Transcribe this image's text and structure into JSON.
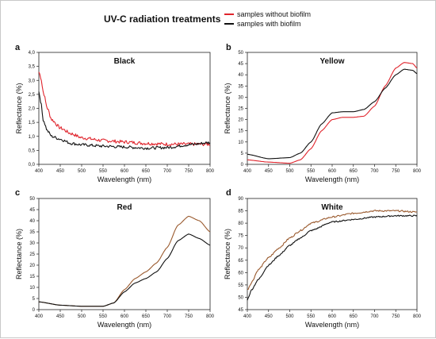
{
  "figure": {
    "title": "UV-C radiation treatments",
    "legend": [
      {
        "label": "samples without biofilm",
        "color": "#e0242c"
      },
      {
        "label": "samples with biofilm",
        "color": "#111111"
      }
    ]
  },
  "chart_data": [
    {
      "panel": "a",
      "type": "line",
      "title": "Black",
      "xlabel": "Wavelength (nm)",
      "ylabel": "Reflectance (%)",
      "xlim": [
        400,
        800
      ],
      "ylim": [
        0,
        4.0
      ],
      "xticks": [
        "400",
        "450",
        "500",
        "550",
        "600",
        "650",
        "700",
        "750",
        "800"
      ],
      "yticks": [
        "0,0",
        "0,5",
        "1,0",
        "1,5",
        "2,0",
        "2,5",
        "3,0",
        "3,5",
        "4,0"
      ],
      "ytick_values": [
        0,
        0.5,
        1,
        1.5,
        2,
        2.5,
        3,
        3.5,
        4
      ],
      "series": [
        {
          "name": "samples without biofilm",
          "color": "#e0242c",
          "noise": 0.06,
          "x": [
            400,
            405,
            410,
            420,
            430,
            450,
            475,
            500,
            550,
            600,
            650,
            700,
            750,
            800
          ],
          "y": [
            3.3,
            3.1,
            2.6,
            2.0,
            1.6,
            1.3,
            1.1,
            0.95,
            0.85,
            0.8,
            0.75,
            0.72,
            0.72,
            0.72
          ]
        },
        {
          "name": "samples with biofilm",
          "color": "#111111",
          "noise": 0.05,
          "x": [
            400,
            405,
            410,
            420,
            430,
            450,
            475,
            500,
            550,
            600,
            650,
            700,
            750,
            800
          ],
          "y": [
            2.6,
            2.2,
            1.6,
            1.2,
            1.0,
            0.9,
            0.75,
            0.7,
            0.65,
            0.62,
            0.58,
            0.6,
            0.7,
            0.78
          ]
        }
      ]
    },
    {
      "panel": "b",
      "type": "line",
      "title": "Yellow",
      "xlabel": "Wavelength (nm)",
      "ylabel": "Reflectance (%)",
      "xlim": [
        400,
        800
      ],
      "ylim": [
        0,
        50
      ],
      "xticks": [
        "400",
        "450",
        "500",
        "550",
        "600",
        "650",
        "700",
        "750",
        "800"
      ],
      "yticks": [
        "0",
        "5",
        "10",
        "15",
        "20",
        "25",
        "30",
        "35",
        "40",
        "45",
        "50"
      ],
      "ytick_values": [
        0,
        5,
        10,
        15,
        20,
        25,
        30,
        35,
        40,
        45,
        50
      ],
      "series": [
        {
          "name": "samples without biofilm",
          "color": "#e0242c",
          "noise": 0,
          "x": [
            400,
            450,
            500,
            525,
            550,
            575,
            600,
            625,
            650,
            675,
            700,
            725,
            750,
            770,
            790,
            800
          ],
          "y": [
            2,
            1,
            0.5,
            2,
            7,
            15,
            20,
            21,
            21,
            21.5,
            26,
            35,
            43,
            45.5,
            45,
            43
          ]
        },
        {
          "name": "samples with biofilm",
          "color": "#111111",
          "noise": 0,
          "x": [
            400,
            450,
            500,
            525,
            550,
            575,
            600,
            625,
            650,
            675,
            700,
            725,
            750,
            770,
            790,
            800
          ],
          "y": [
            4.5,
            2.5,
            3,
            5,
            10,
            18,
            23,
            23.5,
            23.5,
            24.5,
            28,
            34,
            40,
            42.5,
            42,
            40.5
          ]
        }
      ]
    },
    {
      "panel": "c",
      "type": "line",
      "title": "Red",
      "xlabel": "Wavelength (nm)",
      "ylabel": "Reflectance (%)",
      "xlim": [
        400,
        800
      ],
      "ylim": [
        0,
        50
      ],
      "xticks": [
        "400",
        "450",
        "500",
        "550",
        "600",
        "650",
        "700",
        "750",
        "800"
      ],
      "yticks": [
        "0",
        "5",
        "10",
        "15",
        "20",
        "25",
        "30",
        "35",
        "40",
        "45",
        "50"
      ],
      "ytick_values": [
        0,
        5,
        10,
        15,
        20,
        25,
        30,
        35,
        40,
        45,
        50
      ],
      "series": [
        {
          "name": "samples without biofilm",
          "color": "#9a5a2e",
          "noise": 0,
          "x": [
            400,
            450,
            500,
            550,
            575,
            600,
            625,
            650,
            675,
            700,
            725,
            750,
            775,
            800
          ],
          "y": [
            3.5,
            2,
            1.5,
            1.5,
            3,
            9,
            14,
            17,
            21,
            28,
            38,
            42,
            40,
            35
          ]
        },
        {
          "name": "samples with biofilm",
          "color": "#111111",
          "noise": 0,
          "x": [
            400,
            450,
            500,
            550,
            575,
            600,
            625,
            650,
            675,
            700,
            725,
            750,
            775,
            800
          ],
          "y": [
            3.5,
            2,
            1.5,
            1.5,
            3,
            8,
            12,
            14,
            17,
            23,
            31,
            34,
            32,
            29
          ]
        }
      ]
    },
    {
      "panel": "d",
      "type": "line",
      "title": "White",
      "xlabel": "Wavelength (nm)",
      "ylabel": "Reflectance (%)",
      "xlim": [
        400,
        800
      ],
      "ylim": [
        45,
        90
      ],
      "xticks": [
        "400",
        "450",
        "500",
        "550",
        "600",
        "650",
        "700",
        "750",
        "800"
      ],
      "yticks": [
        "45",
        "50",
        "55",
        "60",
        "65",
        "70",
        "75",
        "80",
        "85",
        "90"
      ],
      "ytick_values": [
        45,
        50,
        55,
        60,
        65,
        70,
        75,
        80,
        85,
        90
      ],
      "series": [
        {
          "name": "samples without biofilm",
          "color": "#9a5a2e",
          "noise": 0.3,
          "x": [
            400,
            410,
            425,
            450,
            475,
            500,
            525,
            550,
            600,
            650,
            700,
            750,
            800
          ],
          "y": [
            53,
            56,
            61,
            66,
            70,
            74,
            77,
            80,
            82.5,
            84,
            85,
            85,
            84.5
          ]
        },
        {
          "name": "samples with biofilm",
          "color": "#111111",
          "noise": 0.25,
          "x": [
            400,
            410,
            425,
            450,
            475,
            500,
            525,
            550,
            600,
            650,
            700,
            750,
            800
          ],
          "y": [
            49,
            53,
            57,
            63,
            67,
            71,
            74,
            77,
            80.5,
            81.5,
            82.5,
            83,
            83
          ]
        }
      ]
    }
  ]
}
